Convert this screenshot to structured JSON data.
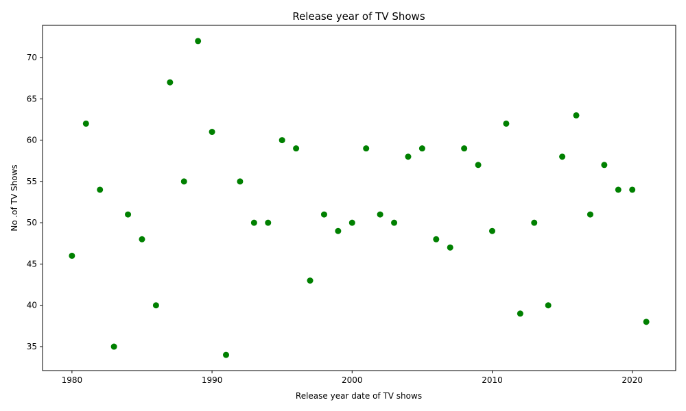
{
  "chart_data": {
    "type": "scatter",
    "title": "Release year of TV Shows",
    "xlabel": "Release year date of TV shows",
    "ylabel": "No .of TV Shows",
    "xlim": [
      1977.9,
      2023.1
    ],
    "ylim": [
      32.1,
      73.9
    ],
    "xticks": [
      1980,
      1990,
      2000,
      2010,
      2020
    ],
    "yticks": [
      35,
      40,
      45,
      50,
      55,
      60,
      65,
      70
    ],
    "grid": false,
    "marker_color": "#008000",
    "points": [
      {
        "x": 1980,
        "y": 46
      },
      {
        "x": 1981,
        "y": 62
      },
      {
        "x": 1982,
        "y": 54
      },
      {
        "x": 1983,
        "y": 35
      },
      {
        "x": 1984,
        "y": 51
      },
      {
        "x": 1985,
        "y": 48
      },
      {
        "x": 1986,
        "y": 40
      },
      {
        "x": 1987,
        "y": 67
      },
      {
        "x": 1988,
        "y": 55
      },
      {
        "x": 1989,
        "y": 72
      },
      {
        "x": 1990,
        "y": 61
      },
      {
        "x": 1991,
        "y": 34
      },
      {
        "x": 1992,
        "y": 55
      },
      {
        "x": 1993,
        "y": 50
      },
      {
        "x": 1994,
        "y": 50
      },
      {
        "x": 1995,
        "y": 60
      },
      {
        "x": 1996,
        "y": 59
      },
      {
        "x": 1997,
        "y": 43
      },
      {
        "x": 1998,
        "y": 51
      },
      {
        "x": 1999,
        "y": 49
      },
      {
        "x": 2000,
        "y": 50
      },
      {
        "x": 2001,
        "y": 59
      },
      {
        "x": 2002,
        "y": 51
      },
      {
        "x": 2003,
        "y": 50
      },
      {
        "x": 2004,
        "y": 58
      },
      {
        "x": 2005,
        "y": 59
      },
      {
        "x": 2006,
        "y": 48
      },
      {
        "x": 2007,
        "y": 47
      },
      {
        "x": 2008,
        "y": 59
      },
      {
        "x": 2009,
        "y": 57
      },
      {
        "x": 2010,
        "y": 49
      },
      {
        "x": 2011,
        "y": 62
      },
      {
        "x": 2012,
        "y": 39
      },
      {
        "x": 2013,
        "y": 50
      },
      {
        "x": 2014,
        "y": 40
      },
      {
        "x": 2015,
        "y": 58
      },
      {
        "x": 2016,
        "y": 63
      },
      {
        "x": 2017,
        "y": 51
      },
      {
        "x": 2018,
        "y": 57
      },
      {
        "x": 2019,
        "y": 54
      },
      {
        "x": 2020,
        "y": 54
      },
      {
        "x": 2021,
        "y": 38
      }
    ]
  }
}
